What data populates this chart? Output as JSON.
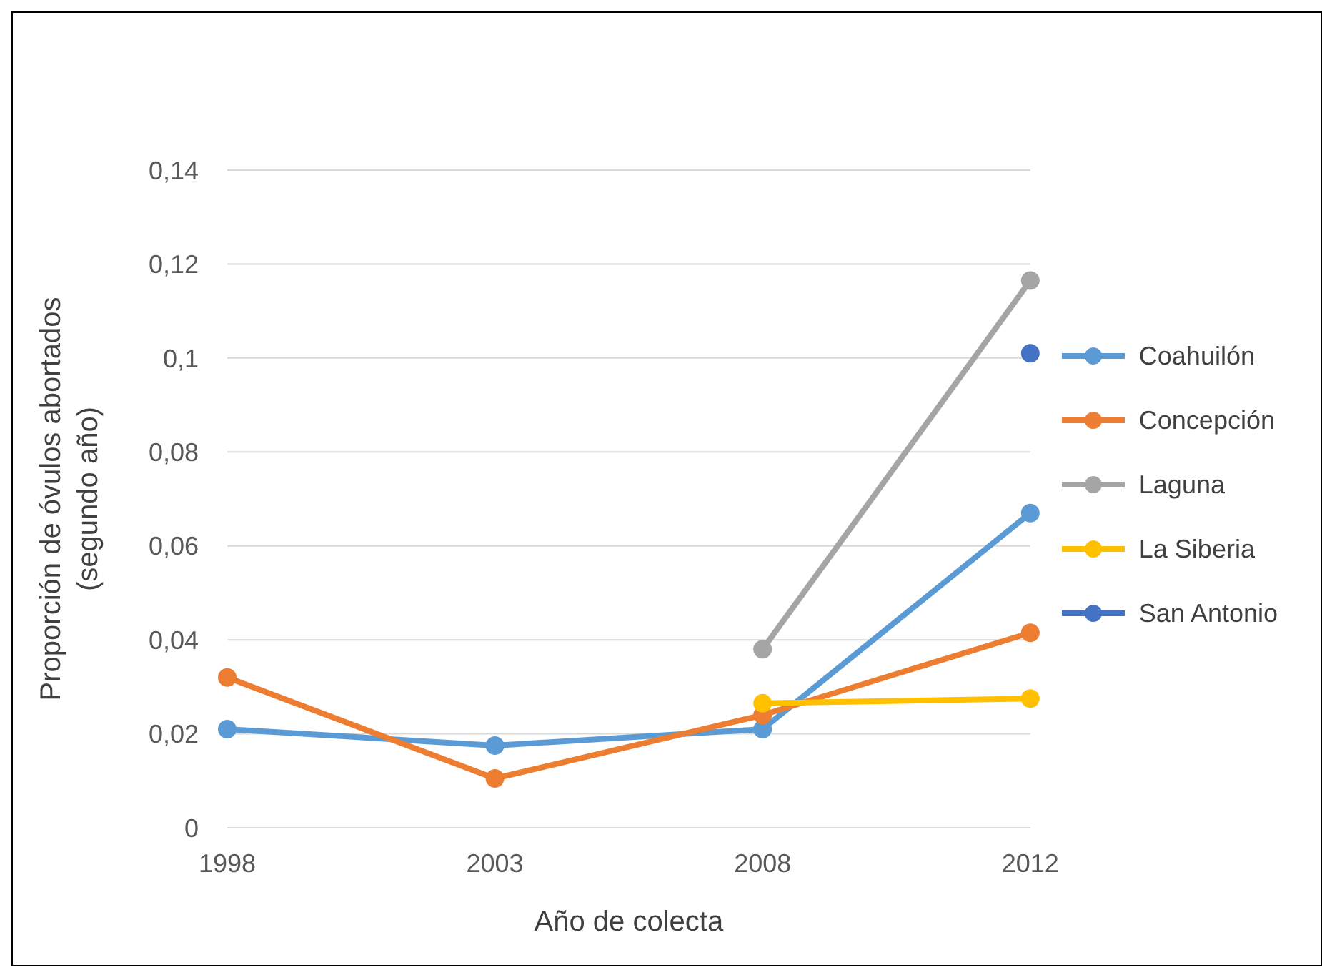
{
  "chart_data": {
    "type": "line",
    "xlabel": "Año de colecta",
    "ylabel": "Proporción de óvulos abortados\n(segundo año)",
    "categories": [
      "1998",
      "2003",
      "2008",
      "2012"
    ],
    "series": [
      {
        "name": "Coahuilón",
        "color": "#5b9bd5",
        "values": [
          0.021,
          0.0175,
          0.021,
          0.067
        ]
      },
      {
        "name": "Concepción",
        "color": "#ed7d31",
        "values": [
          0.032,
          0.0105,
          0.024,
          0.0415
        ]
      },
      {
        "name": "Laguna",
        "color": "#a5a5a5",
        "values": [
          null,
          null,
          0.038,
          0.1165
        ]
      },
      {
        "name": "La Siberia",
        "color": "#ffc000",
        "values": [
          null,
          null,
          0.0265,
          0.0275
        ]
      },
      {
        "name": "San Antonio",
        "color": "#4472c4",
        "values": [
          null,
          null,
          null,
          0.101
        ]
      }
    ],
    "ylim": [
      0,
      0.14
    ],
    "yticks": [
      {
        "value": 0,
        "label": "0"
      },
      {
        "value": 0.02,
        "label": "0,02"
      },
      {
        "value": 0.04,
        "label": "0,04"
      },
      {
        "value": 0.06,
        "label": "0,06"
      },
      {
        "value": 0.08,
        "label": "0,08"
      },
      {
        "value": 0.1,
        "label": "0,1"
      },
      {
        "value": 0.12,
        "label": "0,12"
      },
      {
        "value": 0.14,
        "label": "0,14"
      }
    ],
    "grid": "y",
    "legend": "right",
    "marker": "circle",
    "line_style": "solid"
  }
}
